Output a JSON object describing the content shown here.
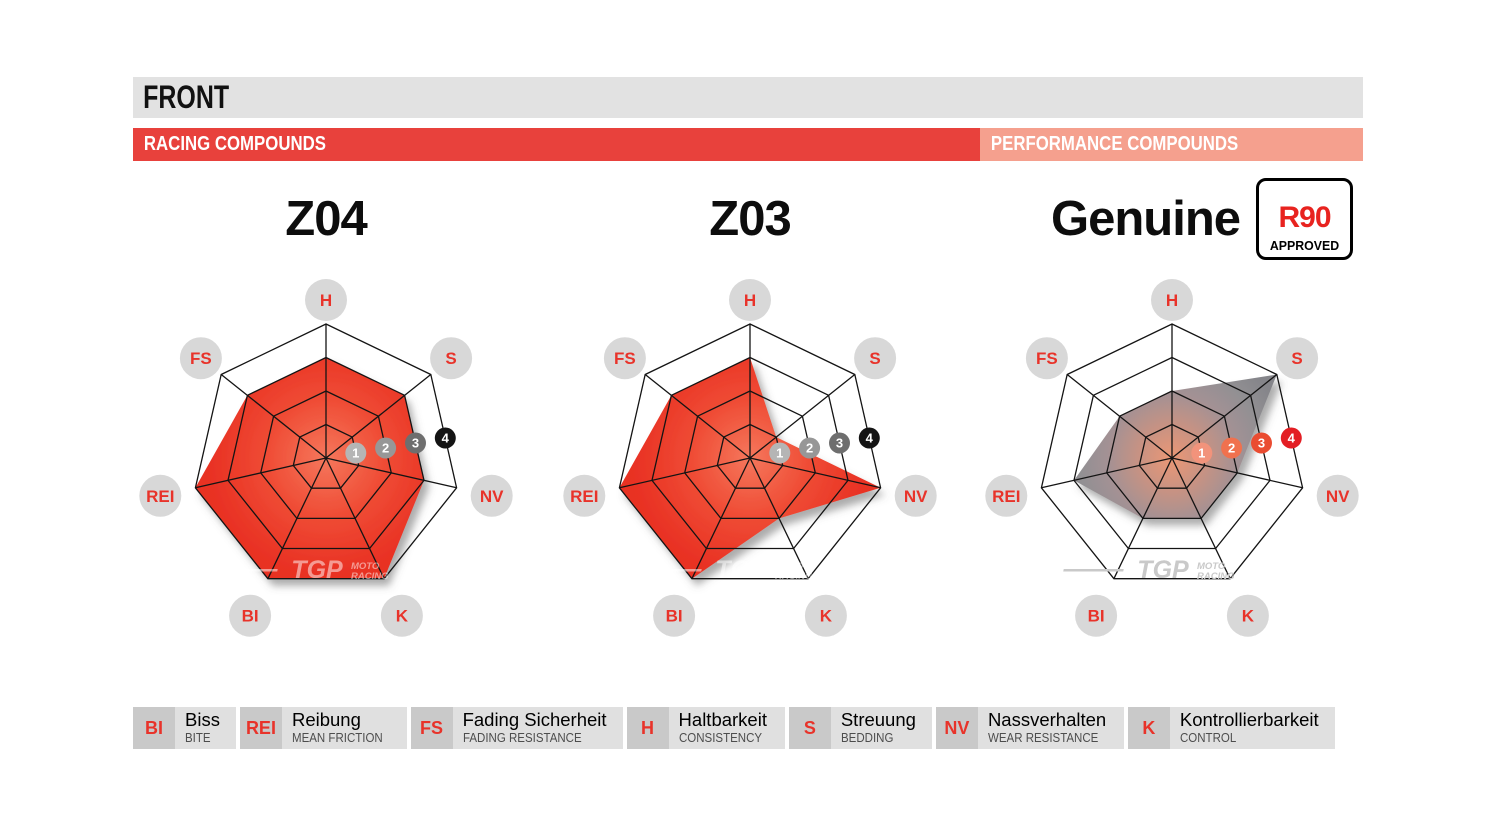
{
  "header": {
    "title": "FRONT",
    "racing_label": "RACING COMPOUNDS",
    "performance_label": "PERFORMANCE COMPOUNDS"
  },
  "badge": {
    "r90": "R90",
    "approved": "APPROVED"
  },
  "watermark": {
    "brand": "TGP",
    "sub1": "MOTO",
    "sub2": "RACING"
  },
  "chart_data": {
    "type": "radar",
    "axes": [
      "H",
      "S",
      "NV",
      "K",
      "BI",
      "REI",
      "FS"
    ],
    "scale": [
      "1",
      "2",
      "3",
      "4"
    ],
    "max": 4,
    "series": [
      {
        "name": "Z04",
        "group": "RACING COMPOUNDS",
        "style": "racing",
        "values": [
          3,
          3,
          3,
          4,
          4,
          4,
          3
        ]
      },
      {
        "name": "Z03",
        "group": "RACING COMPOUNDS",
        "style": "racing",
        "values": [
          3,
          1,
          4,
          2,
          4,
          4,
          3
        ]
      },
      {
        "name": "Genuine",
        "group": "PERFORMANCE COMPOUNDS",
        "style": "performance",
        "badge": "R90 APPROVED",
        "values": [
          2,
          4,
          2,
          2,
          2,
          3,
          2
        ]
      }
    ]
  },
  "legend": [
    {
      "abbr": "BI",
      "de": "Biss",
      "en": "BITE"
    },
    {
      "abbr": "REI",
      "de": "Reibung",
      "en": "MEAN FRICTION"
    },
    {
      "abbr": "FS",
      "de": "Fading Sicherheit",
      "en": "FADING RESISTANCE"
    },
    {
      "abbr": "H",
      "de": "Haltbarkeit",
      "en": "CONSISTENCY"
    },
    {
      "abbr": "S",
      "de": "Streuung",
      "en": "BEDDING"
    },
    {
      "abbr": "NV",
      "de": "Nassverhalten",
      "en": "WEAR RESISTANCE"
    },
    {
      "abbr": "K",
      "de": "Kontrollierbarkeit",
      "en": "CONTROL"
    }
  ],
  "colors": {
    "header_bar": "#e2e2e2",
    "racing_bar": "#e8413c",
    "performance_bar": "#f5a08e",
    "grid": "#141414",
    "axis_label_text": "#e8332a",
    "axis_label_circle": "#d8d8d8",
    "racing_fill_center": "#f5775c",
    "racing_fill_edge": "#e72c1e",
    "genuine_fill_center": "#eb9775",
    "genuine_fill_edge": "#85858a",
    "racing_markers": [
      "#b5b5b5",
      "#979797",
      "#6e6e6e",
      "#141414"
    ],
    "genuine_markers": [
      "#f2937b",
      "#f0714e",
      "#ea4c31",
      "#e31e24"
    ],
    "badge_red": "#e8231f"
  }
}
